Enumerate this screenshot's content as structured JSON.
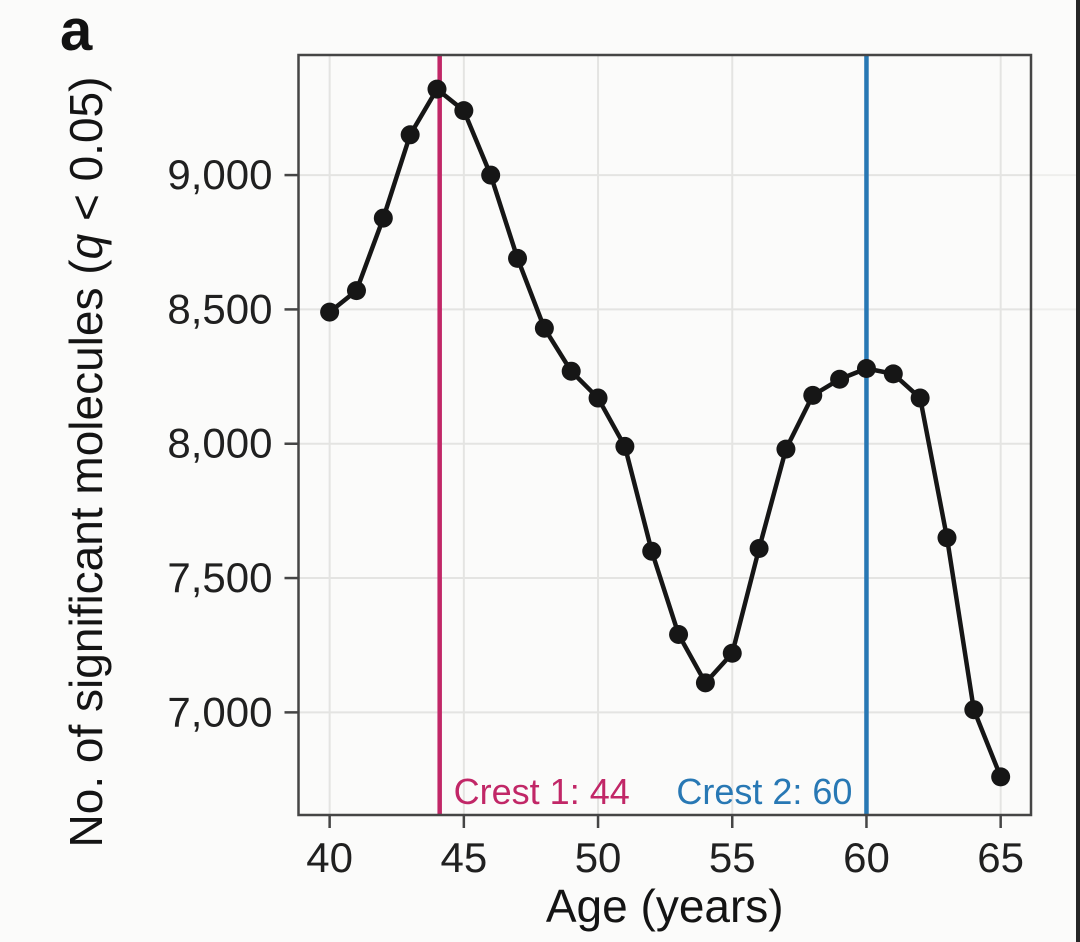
{
  "panel_label": "a",
  "figure": {
    "background": "#fbfbfa",
    "plot_border_color": "#454545",
    "grid_color": "#e4e4e2",
    "tick_label_color": "#202020",
    "axis_title_color": "#141414",
    "right_edge_bar_color": "#262626"
  },
  "chart_data": {
    "type": "line",
    "title": "",
    "x": [
      40,
      41,
      42,
      43,
      44,
      45,
      46,
      47,
      48,
      49,
      50,
      51,
      52,
      53,
      54,
      55,
      56,
      57,
      58,
      59,
      60,
      61,
      62,
      63,
      64,
      65
    ],
    "series": [
      {
        "name": "significant-molecules",
        "values": [
          8490,
          8570,
          8840,
          9150,
          9320,
          9240,
          9000,
          8690,
          8430,
          8270,
          8170,
          7990,
          7600,
          7290,
          7110,
          7220,
          7610,
          7980,
          8180,
          8240,
          8280,
          8260,
          8170,
          7650,
          7010,
          6760
        ],
        "line_color": "#161616",
        "point_color": "#161616"
      }
    ],
    "xlabel": "Age (years)",
    "ylabel": "No. of significant molecules (q < 0.05)",
    "ylabel_italic_token": "q",
    "xticks": [
      40,
      45,
      50,
      55,
      60,
      65
    ],
    "xtick_labels": [
      "40",
      "45",
      "50",
      "55",
      "60",
      "65"
    ],
    "yticks": [
      7000,
      7500,
      8000,
      8500,
      9000
    ],
    "ytick_labels": [
      "7,000",
      "7,500",
      "8,000",
      "8,500",
      "9,000"
    ],
    "xlim": [
      38.84,
      66.13
    ],
    "ylim": [
      6618,
      9447
    ],
    "grid": true,
    "legend": false,
    "annotations": [
      {
        "name": "crest-1",
        "label": "Crest 1: 44",
        "x": 44.1,
        "color": "#c12767",
        "label_side": "right"
      },
      {
        "name": "crest-2",
        "label": "Crest 2: 60",
        "x": 60.0,
        "color": "#2878b4",
        "label_side": "left"
      }
    ]
  }
}
